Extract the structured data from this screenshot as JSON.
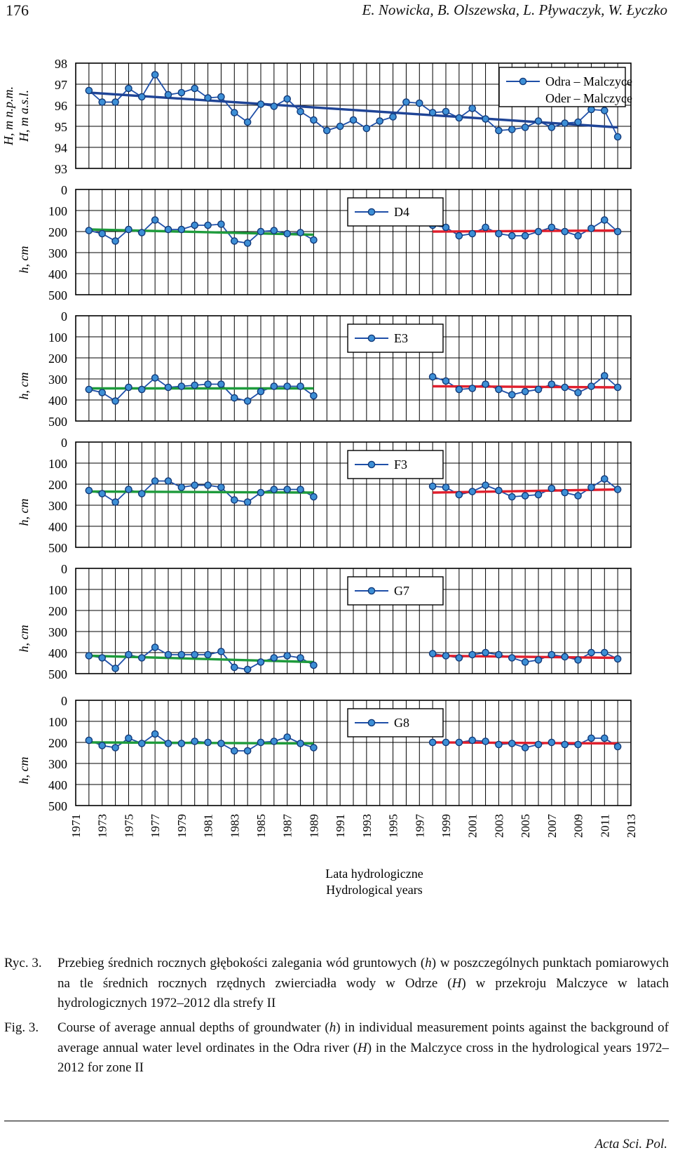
{
  "header": {
    "page_number": "176",
    "authors": "E. Nowicka, B. Olszewska, L. Pływaczyk, W. Łyczko"
  },
  "colors": {
    "series_line": "#1f4fa8",
    "marker_fill": "#3d8fd6",
    "marker_stroke": "#123a7a",
    "trend_river": "#1f4496",
    "trend_period1": "#1e9b3c",
    "trend_period2": "#e01f2d"
  },
  "chart_data": {
    "type": "line",
    "x_axis": {
      "min": 1971,
      "max": 2013,
      "ticks": [
        "1971",
        "1973",
        "1975",
        "1977",
        "1979",
        "1981",
        "1983",
        "1985",
        "1987",
        "1989",
        "1991",
        "1993",
        "1995",
        "1997",
        "1999",
        "2001",
        "2003",
        "2005",
        "2007",
        "2009",
        "2011",
        "2013"
      ],
      "label_pl": "Lata hydrologiczne",
      "label_en": "Hydrological years"
    },
    "panels": [
      {
        "id": "odra",
        "legend": [
          "Odra – Malczyce",
          "Oder – Malczyce"
        ],
        "ylabel": [
          "H, m n.p.m.",
          "H, m a.s.l."
        ],
        "ylim": [
          93,
          98
        ],
        "ylim_inverted": false,
        "yticks": [
          "98",
          "97",
          "96",
          "95",
          "94",
          "93"
        ],
        "x": [
          1972,
          1973,
          1974,
          1975,
          1976,
          1977,
          1978,
          1979,
          1980,
          1981,
          1982,
          1983,
          1984,
          1985,
          1986,
          1987,
          1988,
          1989,
          1990,
          1991,
          1992,
          1993,
          1994,
          1995,
          1996,
          1997,
          1998,
          1999,
          2000,
          2001,
          2002,
          2003,
          2004,
          2005,
          2006,
          2007,
          2008,
          2009,
          2010,
          2011,
          2012
        ],
        "values": [
          96.7,
          96.15,
          96.15,
          96.8,
          96.4,
          97.45,
          96.5,
          96.6,
          96.8,
          96.35,
          96.4,
          95.65,
          95.2,
          96.05,
          95.95,
          96.3,
          95.7,
          95.3,
          94.8,
          95.0,
          95.3,
          94.9,
          95.25,
          95.45,
          96.15,
          96.1,
          95.65,
          95.7,
          95.4,
          95.85,
          95.35,
          94.8,
          94.85,
          94.95,
          95.25,
          94.95,
          95.15,
          95.2,
          95.8,
          95.75,
          94.5
        ],
        "trends": [
          {
            "from": 1972,
            "to": 2012,
            "start": 96.6,
            "end": 94.95,
            "color": "trend_river"
          }
        ]
      },
      {
        "id": "D4",
        "legend": [
          "D4"
        ],
        "ylabel": [
          "h, cm"
        ],
        "ylim": [
          0,
          500
        ],
        "ylim_inverted": true,
        "yticks": [
          "0",
          "100",
          "200",
          "300",
          "400",
          "500"
        ],
        "segments": [
          {
            "x": [
              1972,
              1973,
              1974,
              1975,
              1976,
              1977,
              1978,
              1979,
              1980,
              1981,
              1982,
              1983,
              1984,
              1985,
              1986,
              1987,
              1988,
              1989
            ],
            "values": [
              195,
              210,
              245,
              190,
              205,
              145,
              190,
              190,
              170,
              170,
              165,
              245,
              255,
              200,
              195,
              210,
              205,
              240
            ]
          },
          {
            "x": [
              1998,
              1999,
              2000,
              2001,
              2002,
              2003,
              2004,
              2005,
              2006,
              2007,
              2008,
              2009,
              2010,
              2011,
              2012
            ],
            "values": [
              170,
              180,
              220,
              210,
              180,
              210,
              220,
              220,
              200,
              180,
              200,
              220,
              185,
              145,
              200
            ]
          }
        ],
        "trends": [
          {
            "from": 1972,
            "to": 1989,
            "start": 190,
            "end": 215,
            "color": "trend_period1"
          },
          {
            "from": 1998,
            "to": 2012,
            "start": 200,
            "end": 195,
            "color": "trend_period2"
          }
        ]
      },
      {
        "id": "E3",
        "legend": [
          "E3"
        ],
        "ylabel": [
          "h, cm"
        ],
        "ylim": [
          0,
          500
        ],
        "ylim_inverted": true,
        "yticks": [
          "0",
          "100",
          "200",
          "300",
          "400",
          "500"
        ],
        "segments": [
          {
            "x": [
              1972,
              1973,
              1974,
              1975,
              1976,
              1977,
              1978,
              1979,
              1980,
              1981,
              1982,
              1983,
              1984,
              1985,
              1986,
              1987,
              1988,
              1989
            ],
            "values": [
              350,
              365,
              405,
              340,
              350,
              295,
              340,
              335,
              330,
              325,
              325,
              390,
              405,
              360,
              335,
              335,
              335,
              380
            ]
          },
          {
            "x": [
              1998,
              1999,
              2000,
              2001,
              2002,
              2003,
              2004,
              2005,
              2006,
              2007,
              2008,
              2009,
              2010,
              2011,
              2012
            ],
            "values": [
              290,
              310,
              350,
              345,
              325,
              350,
              375,
              360,
              350,
              325,
              340,
              365,
              335,
              285,
              340
            ]
          }
        ],
        "trends": [
          {
            "from": 1972,
            "to": 1989,
            "start": 345,
            "end": 345,
            "color": "trend_period1"
          },
          {
            "from": 1998,
            "to": 2012,
            "start": 335,
            "end": 340,
            "color": "trend_period2"
          }
        ]
      },
      {
        "id": "F3",
        "legend": [
          "F3"
        ],
        "ylabel": [
          "h, cm"
        ],
        "ylim": [
          0,
          500
        ],
        "ylim_inverted": true,
        "yticks": [
          "0",
          "100",
          "200",
          "300",
          "400",
          "500"
        ],
        "segments": [
          {
            "x": [
              1972,
              1973,
              1974,
              1975,
              1976,
              1977,
              1978,
              1979,
              1980,
              1981,
              1982,
              1983,
              1984,
              1985,
              1986,
              1987,
              1988,
              1989
            ],
            "values": [
              230,
              245,
              285,
              225,
              245,
              185,
              185,
              215,
              205,
              205,
              215,
              275,
              285,
              240,
              225,
              225,
              225,
              260
            ]
          },
          {
            "x": [
              1998,
              1999,
              2000,
              2001,
              2002,
              2003,
              2004,
              2005,
              2006,
              2007,
              2008,
              2009,
              2010,
              2011,
              2012
            ],
            "values": [
              210,
              215,
              250,
              235,
              205,
              230,
              260,
              255,
              250,
              220,
              240,
              255,
              215,
              175,
              225
            ]
          }
        ],
        "trends": [
          {
            "from": 1972,
            "to": 1989,
            "start": 235,
            "end": 240,
            "color": "trend_period1"
          },
          {
            "from": 1998,
            "to": 2012,
            "start": 240,
            "end": 225,
            "color": "trend_period2"
          }
        ]
      },
      {
        "id": "G7",
        "legend": [
          "G7"
        ],
        "ylabel": [
          "h, cm"
        ],
        "ylim": [
          0,
          500
        ],
        "ylim_inverted": true,
        "yticks": [
          "0",
          "100",
          "200",
          "300",
          "400",
          "500"
        ],
        "segments": [
          {
            "x": [
              1972,
              1973,
              1974,
              1975,
              1976,
              1977,
              1978,
              1979,
              1980,
              1981,
              1982,
              1983,
              1984,
              1985,
              1986,
              1987,
              1988,
              1989
            ],
            "values": [
              415,
              425,
              475,
              410,
              425,
              375,
              410,
              410,
              410,
              410,
              395,
              470,
              480,
              445,
              425,
              415,
              425,
              460
            ]
          },
          {
            "x": [
              1998,
              1999,
              2000,
              2001,
              2002,
              2003,
              2004,
              2005,
              2006,
              2007,
              2008,
              2009,
              2010,
              2011,
              2012
            ],
            "values": [
              405,
              415,
              425,
              410,
              400,
              410,
              425,
              445,
              435,
              410,
              420,
              435,
              400,
              400,
              430
            ]
          }
        ],
        "trends": [
          {
            "from": 1972,
            "to": 1989,
            "start": 415,
            "end": 445,
            "color": "trend_period1"
          },
          {
            "from": 1998,
            "to": 2012,
            "start": 415,
            "end": 425,
            "color": "trend_period2"
          }
        ]
      },
      {
        "id": "G8",
        "legend": [
          "G8"
        ],
        "ylabel": [
          "h, cm"
        ],
        "ylim": [
          0,
          500
        ],
        "ylim_inverted": true,
        "yticks": [
          "0",
          "100",
          "200",
          "300",
          "400",
          "500"
        ],
        "segments": [
          {
            "x": [
              1972,
              1973,
              1974,
              1975,
              1976,
              1977,
              1978,
              1979,
              1980,
              1981,
              1982,
              1983,
              1984,
              1985,
              1986,
              1987,
              1988,
              1989
            ],
            "values": [
              190,
              215,
              225,
              180,
              205,
              160,
              205,
              205,
              195,
              200,
              205,
              240,
              240,
              200,
              195,
              175,
              205,
              225
            ]
          },
          {
            "x": [
              1998,
              1999,
              2000,
              2001,
              2002,
              2003,
              2004,
              2005,
              2006,
              2007,
              2008,
              2009,
              2010,
              2011,
              2012
            ],
            "values": [
              200,
              200,
              200,
              190,
              195,
              210,
              205,
              225,
              210,
              200,
              210,
              210,
              180,
              180,
              220
            ]
          }
        ],
        "trends": [
          {
            "from": 1972,
            "to": 1989,
            "start": 200,
            "end": 205,
            "color": "trend_period1"
          },
          {
            "from": 1998,
            "to": 2012,
            "start": 200,
            "end": 205,
            "color": "trend_period2"
          }
        ]
      }
    ]
  },
  "caption_pl": {
    "label": "Ryc. 3.",
    "parts": [
      {
        "text": "Przebieg średnich rocznych głębokości zalegania wód gruntowych (",
        "italic": false
      },
      {
        "text": "h",
        "italic": true
      },
      {
        "text": ") w poszczególnych punktach pomiarowych na tle średnich rocznych rzędnych zwierciadła wody w Odrze (",
        "italic": false
      },
      {
        "text": "H",
        "italic": true
      },
      {
        "text": ") w przekroju Malczyce w latach hydrologicznych 1972–2012 dla strefy II",
        "italic": false
      }
    ]
  },
  "caption_en": {
    "label": "Fig. 3.",
    "parts": [
      {
        "text": "Course of average annual depths of groundwater (",
        "italic": false
      },
      {
        "text": "h",
        "italic": true
      },
      {
        "text": ") in individual measurement points against the background of average annual water level ordinates in the Odra river (",
        "italic": false
      },
      {
        "text": "H",
        "italic": true
      },
      {
        "text": ") in the Malczyce cross in the hydrological years 1972–2012 for zone II",
        "italic": false
      }
    ]
  },
  "footer": {
    "journal": "Acta Sci. Pol."
  }
}
